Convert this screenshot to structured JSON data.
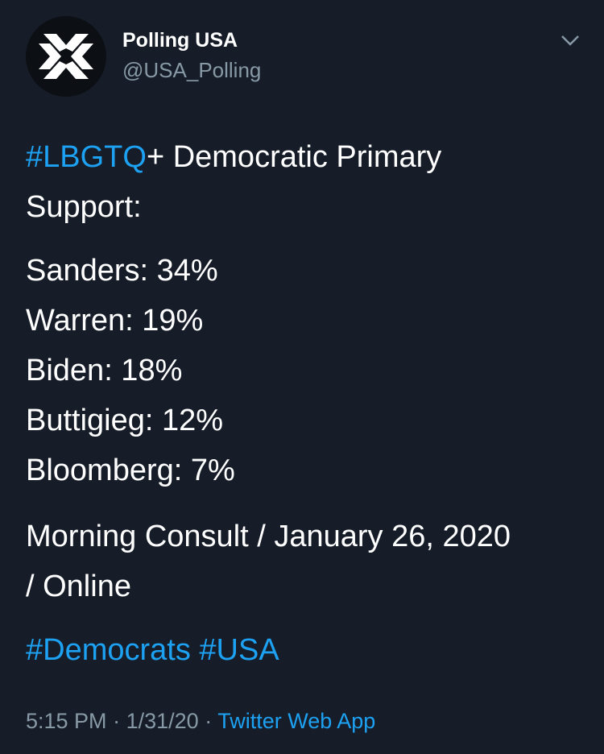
{
  "header": {
    "name": "Polling USA",
    "handle": "@USA_Polling"
  },
  "body": {
    "hashtag": "#LBGTQ",
    "headline": "+ Democratic Primary Support:",
    "results": [
      "Sanders: 34%",
      "Warren: 19%",
      "Biden: 18%",
      "Buttigieg: 12%",
      "Bloomberg: 7%"
    ],
    "source": "Morning Consult / January 26, 2020 / Online",
    "tags": [
      "#Democrats",
      "#USA"
    ]
  },
  "footer": {
    "time": "5:15 PM",
    "separator": "·",
    "date": "1/31/20",
    "app": "Twitter Web App"
  }
}
